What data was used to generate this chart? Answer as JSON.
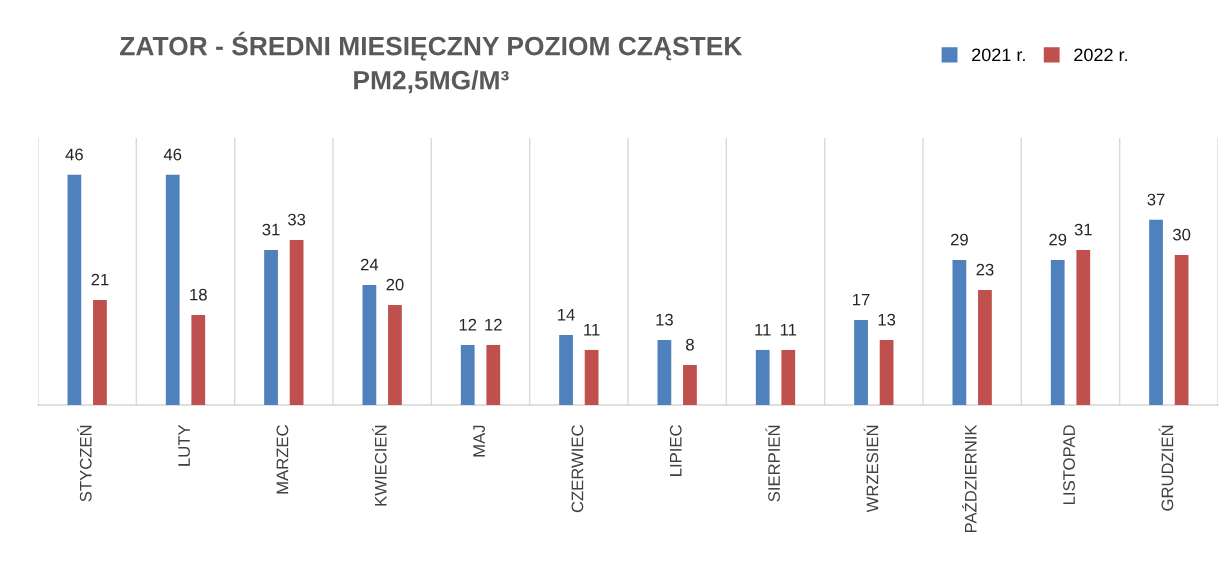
{
  "chart_data": {
    "type": "bar",
    "title": "ZATOR - ŚREDNI MIESIĘCZNY POZIOM CZĄSTEK\nPM2,5MG/M³",
    "categories": [
      "STYCZEŃ",
      "LUTY",
      "MARZEC",
      "KWIECIEŃ",
      "MAJ",
      "CZERWIEC",
      "LIPIEC",
      "SIERPIEŃ",
      "WRZESIEŃ",
      "PAŹDZIERNIK",
      "LISTOPAD",
      "GRUDZIEŃ"
    ],
    "series": [
      {
        "name": "2021 r.",
        "color": "#4f81bd",
        "values": [
          46,
          46,
          31,
          24,
          12,
          14,
          13,
          11,
          17,
          29,
          29,
          37
        ]
      },
      {
        "name": "2022 r.",
        "color": "#c0504d",
        "values": [
          21,
          18,
          33,
          20,
          12,
          11,
          8,
          11,
          13,
          23,
          31,
          30
        ]
      }
    ],
    "data_labels": true,
    "grid": "x",
    "legend": "top right",
    "tick_labels": "x"
  }
}
